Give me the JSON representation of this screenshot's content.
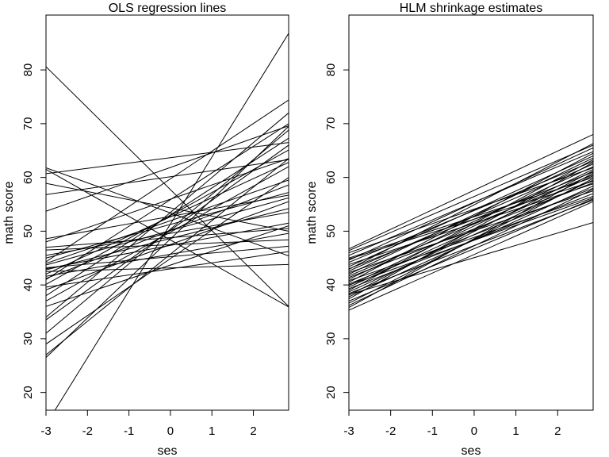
{
  "chart_data": [
    {
      "type": "line",
      "title": "OLS regression lines",
      "xlabel": "ses",
      "ylabel": "math score",
      "xlim": [
        -3,
        2.85
      ],
      "ylim": [
        16.7,
        90.2
      ],
      "xticks": [
        -3,
        -2,
        -1,
        0,
        1,
        2
      ],
      "yticks": [
        20,
        30,
        40,
        50,
        60,
        70,
        80
      ],
      "segments": [
        [
          80.6,
          36.0
        ],
        [
          14.0,
          86.8
        ],
        [
          61.8,
          45.4
        ],
        [
          61.5,
          35.9
        ],
        [
          60.7,
          66.5
        ],
        [
          58.9,
          50.0
        ],
        [
          56.8,
          63.3
        ],
        [
          53.7,
          69.6
        ],
        [
          48.6,
          56.7
        ],
        [
          48.0,
          63.5
        ],
        [
          46.5,
          48.4
        ],
        [
          45.0,
          57.2
        ],
        [
          44.3,
          74.4
        ],
        [
          43.7,
          56.2
        ],
        [
          43.0,
          51.5
        ],
        [
          42.5,
          43.8
        ],
        [
          42.0,
          62.8
        ],
        [
          41.6,
          49.6
        ],
        [
          41.0,
          70.0
        ],
        [
          40.1,
          65.1
        ],
        [
          39.1,
          55.5
        ],
        [
          37.0,
          62.0
        ],
        [
          36.0,
          51.0
        ],
        [
          34.0,
          72.0
        ],
        [
          33.5,
          66.0
        ],
        [
          31.0,
          68.8
        ],
        [
          29.0,
          60.0
        ],
        [
          27.0,
          63.5
        ],
        [
          26.5,
          69.5
        ],
        [
          47.0,
          50.5
        ],
        [
          45.5,
          53.5
        ],
        [
          44.0,
          59.5
        ],
        [
          43.2,
          47.2
        ],
        [
          42.8,
          54.2
        ],
        [
          41.2,
          58.6
        ],
        [
          39.6,
          46.2
        ],
        [
          38.0,
          67.3
        ]
      ]
    },
    {
      "type": "line",
      "title": "HLM shrinkage estimates",
      "xlabel": "ses",
      "ylabel": "math score",
      "xlim": [
        -3,
        2.85
      ],
      "ylim": [
        16.7,
        90.2
      ],
      "xticks": [
        -3,
        -2,
        -1,
        0,
        1,
        2
      ],
      "yticks": [
        20,
        30,
        40,
        50,
        60,
        70,
        80
      ],
      "segments": [
        [
          46.7,
          68.0
        ],
        [
          46.4,
          66.0
        ],
        [
          46.0,
          61.8
        ],
        [
          45.5,
          64.8
        ],
        [
          45.0,
          60.0
        ],
        [
          44.6,
          65.5
        ],
        [
          44.2,
          63.0
        ],
        [
          43.8,
          58.8
        ],
        [
          43.4,
          64.0
        ],
        [
          43.0,
          61.0
        ],
        [
          42.6,
          62.5
        ],
        [
          42.3,
          57.5
        ],
        [
          42.0,
          63.6
        ],
        [
          41.7,
          60.5
        ],
        [
          41.4,
          59.0
        ],
        [
          41.1,
          62.0
        ],
        [
          40.8,
          56.5
        ],
        [
          40.5,
          64.5
        ],
        [
          40.2,
          58.0
        ],
        [
          39.9,
          61.5
        ],
        [
          39.6,
          60.3
        ],
        [
          39.3,
          57.0
        ],
        [
          39.0,
          63.3
        ],
        [
          38.7,
          59.5
        ],
        [
          38.4,
          55.8
        ],
        [
          38.1,
          61.2
        ],
        [
          37.8,
          58.4
        ],
        [
          37.4,
          62.8
        ],
        [
          37.0,
          56.0
        ],
        [
          36.6,
          59.8
        ],
        [
          36.2,
          57.8
        ],
        [
          35.8,
          60.8
        ],
        [
          35.3,
          55.5
        ],
        [
          38.2,
          51.6
        ],
        [
          44.8,
          59.3
        ],
        [
          42.9,
          66.3
        ],
        [
          40.0,
          56.2
        ]
      ]
    }
  ]
}
